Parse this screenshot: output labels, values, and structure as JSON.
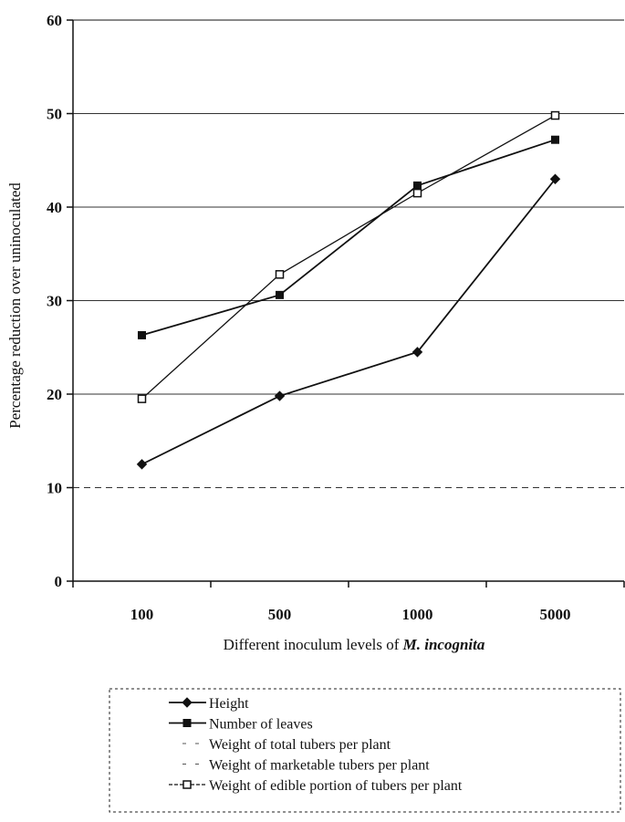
{
  "chart_data": {
    "type": "line",
    "categories": [
      "100",
      "500",
      "1000",
      "5000"
    ],
    "xlabel_prefix": "Different inoculum levels of ",
    "xlabel_species": "M. incognita",
    "ylabel": "Percentage reduction over uninoculated",
    "ylim": [
      0,
      60
    ],
    "yticks": [
      0,
      10,
      20,
      30,
      40,
      50,
      60
    ],
    "grid": true,
    "legend_position": "bottom",
    "series": [
      {
        "name": "Height",
        "marker": "diamond",
        "color": "#111111",
        "values": [
          12.5,
          19.8,
          24.5,
          43.0
        ]
      },
      {
        "name": "Number of leaves",
        "marker": "square",
        "color": "#111111",
        "values": [
          26.3,
          30.6,
          42.3,
          47.2
        ]
      },
      {
        "name": "Weight of total tubers per plant",
        "marker": "none",
        "color": "#111111",
        "values": [
          null,
          null,
          null,
          null
        ]
      },
      {
        "name": "Weight of marketable tubers per plant",
        "marker": "none",
        "color": "#111111",
        "values": [
          null,
          null,
          null,
          null
        ]
      },
      {
        "name": "Weight of edible portion of tubers per plant",
        "marker": "open-square",
        "color": "#111111",
        "values": [
          19.5,
          32.8,
          41.5,
          49.8
        ]
      }
    ]
  }
}
